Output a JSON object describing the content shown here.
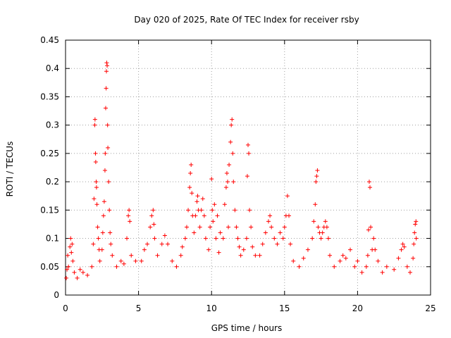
{
  "chart_data": {
    "type": "scatter",
    "title": "Day 020 of 2025, Rate Of TEC Index for receiver rsby",
    "xlabel": "GPS time / hours",
    "ylabel": "ROTI / TECUs",
    "xlim": [
      0,
      25
    ],
    "ylim": [
      0,
      0.45
    ],
    "xticks": [
      0,
      5,
      10,
      15,
      20,
      25
    ],
    "xtick_labels": [
      "0",
      "5",
      "10",
      "15",
      "20",
      "25"
    ],
    "yticks": [
      0,
      0.05,
      0.1,
      0.15,
      0.2,
      0.25,
      0.3,
      0.35,
      0.4,
      0.45
    ],
    "ytick_labels": [
      "0",
      "0.05",
      "0.1",
      "0.15",
      "0.2",
      "0.25",
      "0.3",
      "0.35",
      "0.4",
      "0.45"
    ],
    "grid": true,
    "marker": "+",
    "color": "#ff0000",
    "series": [
      {
        "name": "ROTI",
        "points": [
          [
            0.05,
            0.03
          ],
          [
            0.1,
            0.045
          ],
          [
            0.15,
            0.07
          ],
          [
            0.2,
            0.05
          ],
          [
            0.3,
            0.085
          ],
          [
            0.35,
            0.1
          ],
          [
            0.4,
            0.075
          ],
          [
            0.45,
            0.09
          ],
          [
            0.5,
            0.06
          ],
          [
            0.6,
            0.04
          ],
          [
            0.8,
            0.03
          ],
          [
            1.0,
            0.045
          ],
          [
            1.2,
            0.04
          ],
          [
            1.5,
            0.035
          ],
          [
            1.8,
            0.05
          ],
          [
            1.9,
            0.09
          ],
          [
            1.95,
            0.17
          ],
          [
            2.0,
            0.3
          ],
          [
            2.02,
            0.31
          ],
          [
            2.05,
            0.25
          ],
          [
            2.07,
            0.235
          ],
          [
            2.1,
            0.2
          ],
          [
            2.12,
            0.19
          ],
          [
            2.15,
            0.16
          ],
          [
            2.2,
            0.12
          ],
          [
            2.25,
            0.1
          ],
          [
            2.3,
            0.08
          ],
          [
            2.35,
            0.06
          ],
          [
            2.5,
            0.08
          ],
          [
            2.55,
            0.11
          ],
          [
            2.6,
            0.14
          ],
          [
            2.65,
            0.165
          ],
          [
            2.7,
            0.22
          ],
          [
            2.72,
            0.25
          ],
          [
            2.75,
            0.33
          ],
          [
            2.78,
            0.365
          ],
          [
            2.8,
            0.395
          ],
          [
            2.82,
            0.41
          ],
          [
            2.85,
            0.405
          ],
          [
            2.88,
            0.3
          ],
          [
            2.9,
            0.26
          ],
          [
            2.95,
            0.2
          ],
          [
            3.0,
            0.15
          ],
          [
            3.05,
            0.11
          ],
          [
            3.1,
            0.09
          ],
          [
            3.2,
            0.07
          ],
          [
            3.5,
            0.05
          ],
          [
            3.8,
            0.06
          ],
          [
            4.0,
            0.055
          ],
          [
            4.2,
            0.1
          ],
          [
            4.3,
            0.14
          ],
          [
            4.35,
            0.15
          ],
          [
            4.4,
            0.13
          ],
          [
            4.5,
            0.07
          ],
          [
            4.8,
            0.06
          ],
          [
            5.2,
            0.06
          ],
          [
            5.4,
            0.08
          ],
          [
            5.6,
            0.09
          ],
          [
            5.8,
            0.12
          ],
          [
            5.9,
            0.14
          ],
          [
            6.0,
            0.15
          ],
          [
            6.05,
            0.125
          ],
          [
            6.1,
            0.1
          ],
          [
            6.3,
            0.07
          ],
          [
            6.6,
            0.09
          ],
          [
            6.8,
            0.105
          ],
          [
            7.0,
            0.09
          ],
          [
            7.3,
            0.06
          ],
          [
            7.6,
            0.05
          ],
          [
            7.9,
            0.07
          ],
          [
            8.0,
            0.085
          ],
          [
            8.2,
            0.1
          ],
          [
            8.3,
            0.12
          ],
          [
            8.4,
            0.15
          ],
          [
            8.5,
            0.19
          ],
          [
            8.55,
            0.215
          ],
          [
            8.6,
            0.23
          ],
          [
            8.65,
            0.18
          ],
          [
            8.7,
            0.14
          ],
          [
            8.8,
            0.11
          ],
          [
            8.9,
            0.14
          ],
          [
            9.0,
            0.165
          ],
          [
            9.05,
            0.175
          ],
          [
            9.1,
            0.15
          ],
          [
            9.2,
            0.12
          ],
          [
            9.3,
            0.15
          ],
          [
            9.4,
            0.17
          ],
          [
            9.5,
            0.14
          ],
          [
            9.6,
            0.1
          ],
          [
            9.8,
            0.08
          ],
          [
            9.9,
            0.12
          ],
          [
            10.0,
            0.205
          ],
          [
            10.05,
            0.15
          ],
          [
            10.1,
            0.13
          ],
          [
            10.2,
            0.16
          ],
          [
            10.3,
            0.1
          ],
          [
            10.4,
            0.14
          ],
          [
            10.5,
            0.075
          ],
          [
            10.6,
            0.11
          ],
          [
            10.8,
            0.1
          ],
          [
            10.9,
            0.16
          ],
          [
            11.0,
            0.19
          ],
          [
            11.05,
            0.215
          ],
          [
            11.1,
            0.2
          ],
          [
            11.15,
            0.12
          ],
          [
            11.2,
            0.23
          ],
          [
            11.3,
            0.27
          ],
          [
            11.35,
            0.3
          ],
          [
            11.4,
            0.31
          ],
          [
            11.45,
            0.25
          ],
          [
            11.5,
            0.2
          ],
          [
            11.6,
            0.15
          ],
          [
            11.7,
            0.12
          ],
          [
            11.8,
            0.1
          ],
          [
            11.9,
            0.085
          ],
          [
            12.0,
            0.07
          ],
          [
            12.2,
            0.08
          ],
          [
            12.4,
            0.1
          ],
          [
            12.45,
            0.21
          ],
          [
            12.5,
            0.265
          ],
          [
            12.55,
            0.25
          ],
          [
            12.6,
            0.15
          ],
          [
            12.7,
            0.12
          ],
          [
            12.8,
            0.085
          ],
          [
            13.0,
            0.07
          ],
          [
            13.3,
            0.07
          ],
          [
            13.5,
            0.09
          ],
          [
            13.7,
            0.11
          ],
          [
            13.9,
            0.13
          ],
          [
            14.0,
            0.14
          ],
          [
            14.1,
            0.12
          ],
          [
            14.3,
            0.1
          ],
          [
            14.5,
            0.09
          ],
          [
            14.7,
            0.11
          ],
          [
            14.9,
            0.1
          ],
          [
            15.0,
            0.12
          ],
          [
            15.1,
            0.14
          ],
          [
            15.2,
            0.175
          ],
          [
            15.3,
            0.14
          ],
          [
            15.4,
            0.09
          ],
          [
            15.6,
            0.06
          ],
          [
            16.0,
            0.05
          ],
          [
            16.3,
            0.065
          ],
          [
            16.6,
            0.08
          ],
          [
            16.9,
            0.1
          ],
          [
            17.0,
            0.13
          ],
          [
            17.1,
            0.16
          ],
          [
            17.15,
            0.2
          ],
          [
            17.2,
            0.21
          ],
          [
            17.25,
            0.22
          ],
          [
            17.3,
            0.12
          ],
          [
            17.4,
            0.11
          ],
          [
            17.5,
            0.1
          ],
          [
            17.6,
            0.11
          ],
          [
            17.7,
            0.12
          ],
          [
            17.8,
            0.13
          ],
          [
            17.9,
            0.12
          ],
          [
            18.0,
            0.1
          ],
          [
            18.1,
            0.07
          ],
          [
            18.4,
            0.05
          ],
          [
            18.8,
            0.06
          ],
          [
            19.0,
            0.07
          ],
          [
            19.2,
            0.065
          ],
          [
            19.5,
            0.08
          ],
          [
            19.8,
            0.05
          ],
          [
            20.0,
            0.06
          ],
          [
            20.3,
            0.04
          ],
          [
            20.6,
            0.05
          ],
          [
            20.7,
            0.07
          ],
          [
            20.75,
            0.115
          ],
          [
            20.8,
            0.2
          ],
          [
            20.85,
            0.19
          ],
          [
            20.9,
            0.12
          ],
          [
            21.0,
            0.08
          ],
          [
            21.1,
            0.1
          ],
          [
            21.2,
            0.08
          ],
          [
            21.4,
            0.06
          ],
          [
            21.7,
            0.04
          ],
          [
            22.0,
            0.05
          ],
          [
            22.5,
            0.045
          ],
          [
            22.8,
            0.065
          ],
          [
            23.0,
            0.08
          ],
          [
            23.1,
            0.09
          ],
          [
            23.2,
            0.085
          ],
          [
            23.4,
            0.05
          ],
          [
            23.6,
            0.04
          ],
          [
            23.8,
            0.065
          ],
          [
            23.85,
            0.09
          ],
          [
            23.9,
            0.11
          ],
          [
            23.95,
            0.125
          ],
          [
            24.0,
            0.13
          ],
          [
            24.02,
            0.1
          ]
        ]
      }
    ]
  }
}
